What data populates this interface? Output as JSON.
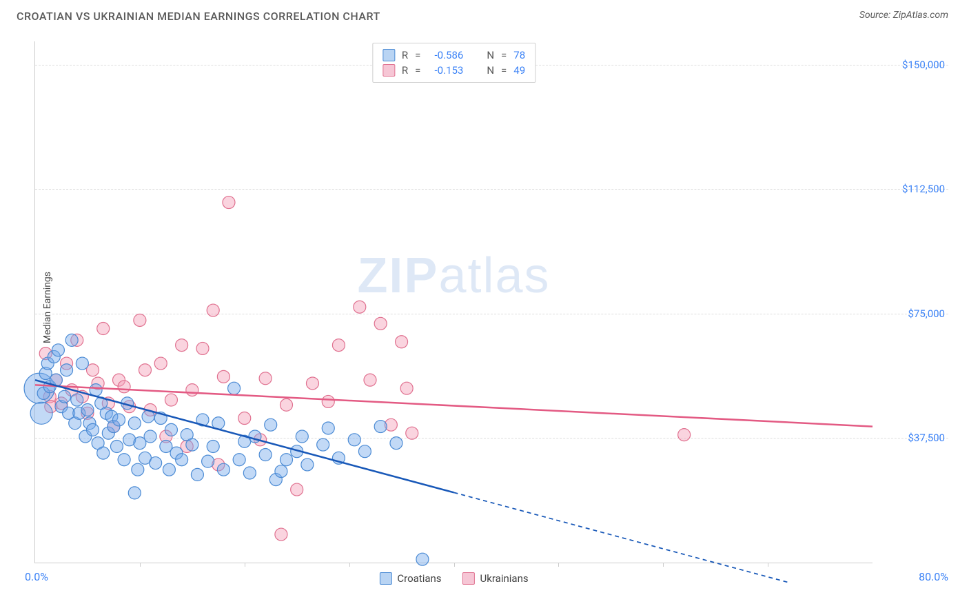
{
  "header": {
    "title": "CROATIAN VS UKRAINIAN MEDIAN EARNINGS CORRELATION CHART",
    "source_prefix": "Source: ",
    "source_name": "ZipAtlas.com"
  },
  "watermark": {
    "bold": "ZIP",
    "rest": "atlas"
  },
  "chart": {
    "type": "scatter",
    "xlim": [
      0,
      80
    ],
    "ylim": [
      0,
      157000
    ],
    "x_label_min": "0.0%",
    "x_label_max": "80.0%",
    "y_axis_title": "Median Earnings",
    "y_gridlines": [
      {
        "value": 37500,
        "label": "$37,500"
      },
      {
        "value": 75000,
        "label": "$75,000"
      },
      {
        "value": 112500,
        "label": "$112,500"
      },
      {
        "value": 150000,
        "label": "$150,000"
      }
    ],
    "x_ticks": [
      10,
      20,
      30,
      40,
      50,
      60,
      70
    ],
    "background_color": "#ffffff",
    "grid_color": "#dcdcdc",
    "axis_color": "#cccccc"
  },
  "stats": {
    "r_symbol": "R",
    "eq_symbol": "=",
    "n_symbol": "N",
    "series": [
      {
        "id": "croatians",
        "r": "-0.586",
        "n": "78"
      },
      {
        "id": "ukrainians",
        "r": "-0.153",
        "n": "49"
      }
    ]
  },
  "legend": {
    "items": [
      {
        "id": "croatians",
        "label": "Croatians"
      },
      {
        "id": "ukrainians",
        "label": "Ukrainians"
      }
    ]
  },
  "series": {
    "croatians": {
      "fill": "rgba(120,170,235,0.45)",
      "stroke": "#4a8ad4",
      "swatch_fill": "#b9d4f3",
      "swatch_stroke": "#4a8ad4",
      "marker_r": 9,
      "trend": {
        "line_color": "#1858b8",
        "line_width": 2.5,
        "solid_to_x": 40,
        "points": [
          {
            "x": 0,
            "y": 55000
          },
          {
            "x": 72,
            "y": -6000
          }
        ]
      },
      "points": [
        {
          "x": 0.4,
          "y": 52500,
          "r": 22
        },
        {
          "x": 0.6,
          "y": 45000,
          "r": 16
        },
        {
          "x": 1.0,
          "y": 57000
        },
        {
          "x": 0.8,
          "y": 51000
        },
        {
          "x": 1.2,
          "y": 60000
        },
        {
          "x": 1.4,
          "y": 53000
        },
        {
          "x": 1.8,
          "y": 62000
        },
        {
          "x": 2.0,
          "y": 55000
        },
        {
          "x": 2.2,
          "y": 64000
        },
        {
          "x": 2.5,
          "y": 47000
        },
        {
          "x": 2.8,
          "y": 50000
        },
        {
          "x": 3.0,
          "y": 58000
        },
        {
          "x": 3.2,
          "y": 45000
        },
        {
          "x": 3.5,
          "y": 67000
        },
        {
          "x": 3.8,
          "y": 42000
        },
        {
          "x": 4.0,
          "y": 49000
        },
        {
          "x": 4.2,
          "y": 45000
        },
        {
          "x": 4.5,
          "y": 60000
        },
        {
          "x": 4.8,
          "y": 38000
        },
        {
          "x": 5.0,
          "y": 46000
        },
        {
          "x": 5.2,
          "y": 42000
        },
        {
          "x": 5.5,
          "y": 40000
        },
        {
          "x": 5.8,
          "y": 52000
        },
        {
          "x": 6.0,
          "y": 36000
        },
        {
          "x": 6.3,
          "y": 48000
        },
        {
          "x": 6.5,
          "y": 33000
        },
        {
          "x": 6.8,
          "y": 45000
        },
        {
          "x": 7.0,
          "y": 39000
        },
        {
          "x": 7.3,
          "y": 44000
        },
        {
          "x": 7.5,
          "y": 41000
        },
        {
          "x": 7.8,
          "y": 35000
        },
        {
          "x": 8.0,
          "y": 43000
        },
        {
          "x": 8.5,
          "y": 31000
        },
        {
          "x": 8.8,
          "y": 48000
        },
        {
          "x": 9.0,
          "y": 37000
        },
        {
          "x": 9.5,
          "y": 42000
        },
        {
          "x": 9.8,
          "y": 28000
        },
        {
          "x": 10.0,
          "y": 36000
        },
        {
          "x": 10.5,
          "y": 31500
        },
        {
          "x": 10.8,
          "y": 44000
        },
        {
          "x": 11.0,
          "y": 38000
        },
        {
          "x": 11.5,
          "y": 30000
        },
        {
          "x": 12.0,
          "y": 43500
        },
        {
          "x": 12.5,
          "y": 35000
        },
        {
          "x": 12.8,
          "y": 28000
        },
        {
          "x": 13.0,
          "y": 40000
        },
        {
          "x": 13.5,
          "y": 33000
        },
        {
          "x": 14.0,
          "y": 31000
        },
        {
          "x": 14.5,
          "y": 38500
        },
        {
          "x": 15.0,
          "y": 35500
        },
        {
          "x": 15.5,
          "y": 26500
        },
        {
          "x": 16.0,
          "y": 43000
        },
        {
          "x": 16.5,
          "y": 30500
        },
        {
          "x": 17.0,
          "y": 35000
        },
        {
          "x": 17.5,
          "y": 42000
        },
        {
          "x": 18.0,
          "y": 28000
        },
        {
          "x": 19.0,
          "y": 52500
        },
        {
          "x": 19.5,
          "y": 31000
        },
        {
          "x": 20.0,
          "y": 36500
        },
        {
          "x": 20.5,
          "y": 27000
        },
        {
          "x": 21.0,
          "y": 38000
        },
        {
          "x": 22.0,
          "y": 32500
        },
        {
          "x": 22.5,
          "y": 41500
        },
        {
          "x": 23.0,
          "y": 25000
        },
        {
          "x": 23.5,
          "y": 27500
        },
        {
          "x": 24.0,
          "y": 31000
        },
        {
          "x": 25.0,
          "y": 33500
        },
        {
          "x": 25.5,
          "y": 38000
        },
        {
          "x": 26.0,
          "y": 29500
        },
        {
          "x": 27.5,
          "y": 35500
        },
        {
          "x": 28.0,
          "y": 40500
        },
        {
          "x": 29.0,
          "y": 31500
        },
        {
          "x": 30.5,
          "y": 37000
        },
        {
          "x": 31.5,
          "y": 33500
        },
        {
          "x": 33.0,
          "y": 41000
        },
        {
          "x": 34.5,
          "y": 36000
        },
        {
          "x": 37.0,
          "y": 1000
        },
        {
          "x": 9.5,
          "y": 21000
        }
      ]
    },
    "ukrainians": {
      "fill": "rgba(245,160,185,0.45)",
      "stroke": "#e0708f",
      "swatch_fill": "#f6c6d5",
      "swatch_stroke": "#e0708f",
      "marker_r": 9,
      "trend": {
        "line_color": "#e35a83",
        "line_width": 2.5,
        "solid_to_x": 80,
        "points": [
          {
            "x": 0,
            "y": 53500
          },
          {
            "x": 80,
            "y": 41000
          }
        ]
      },
      "points": [
        {
          "x": 1.0,
          "y": 63000
        },
        {
          "x": 1.4,
          "y": 50000
        },
        {
          "x": 2.0,
          "y": 55000
        },
        {
          "x": 2.5,
          "y": 48000
        },
        {
          "x": 3.0,
          "y": 60000
        },
        {
          "x": 3.5,
          "y": 52000
        },
        {
          "x": 4.0,
          "y": 67000
        },
        {
          "x": 4.5,
          "y": 50000
        },
        {
          "x": 5.0,
          "y": 45000
        },
        {
          "x": 5.5,
          "y": 58000
        },
        {
          "x": 6.0,
          "y": 54000
        },
        {
          "x": 6.5,
          "y": 70500
        },
        {
          "x": 7.0,
          "y": 48000
        },
        {
          "x": 7.5,
          "y": 41000
        },
        {
          "x": 8.0,
          "y": 55000
        },
        {
          "x": 8.5,
          "y": 53000
        },
        {
          "x": 9.0,
          "y": 47000
        },
        {
          "x": 10.0,
          "y": 73000
        },
        {
          "x": 10.5,
          "y": 58000
        },
        {
          "x": 11.0,
          "y": 46000
        },
        {
          "x": 12.0,
          "y": 60000
        },
        {
          "x": 12.5,
          "y": 38000
        },
        {
          "x": 13.0,
          "y": 49000
        },
        {
          "x": 14.0,
          "y": 65500
        },
        {
          "x": 14.5,
          "y": 35000
        },
        {
          "x": 15.0,
          "y": 52000
        },
        {
          "x": 16.0,
          "y": 64500
        },
        {
          "x": 17.0,
          "y": 76000
        },
        {
          "x": 17.5,
          "y": 29500
        },
        {
          "x": 18.0,
          "y": 56000
        },
        {
          "x": 18.5,
          "y": 108500
        },
        {
          "x": 20.0,
          "y": 43500
        },
        {
          "x": 21.5,
          "y": 37000
        },
        {
          "x": 22.0,
          "y": 55500
        },
        {
          "x": 23.5,
          "y": 8500
        },
        {
          "x": 24.0,
          "y": 47500
        },
        {
          "x": 25.0,
          "y": 22000
        },
        {
          "x": 26.5,
          "y": 54000
        },
        {
          "x": 28.0,
          "y": 48500
        },
        {
          "x": 29.0,
          "y": 65500
        },
        {
          "x": 31.0,
          "y": 77000
        },
        {
          "x": 32.0,
          "y": 55000
        },
        {
          "x": 33.0,
          "y": 72000
        },
        {
          "x": 34.0,
          "y": 41500
        },
        {
          "x": 35.0,
          "y": 66500
        },
        {
          "x": 35.5,
          "y": 52500
        },
        {
          "x": 36.0,
          "y": 39000
        },
        {
          "x": 62.0,
          "y": 38500
        },
        {
          "x": 1.5,
          "y": 47000
        }
      ]
    }
  }
}
